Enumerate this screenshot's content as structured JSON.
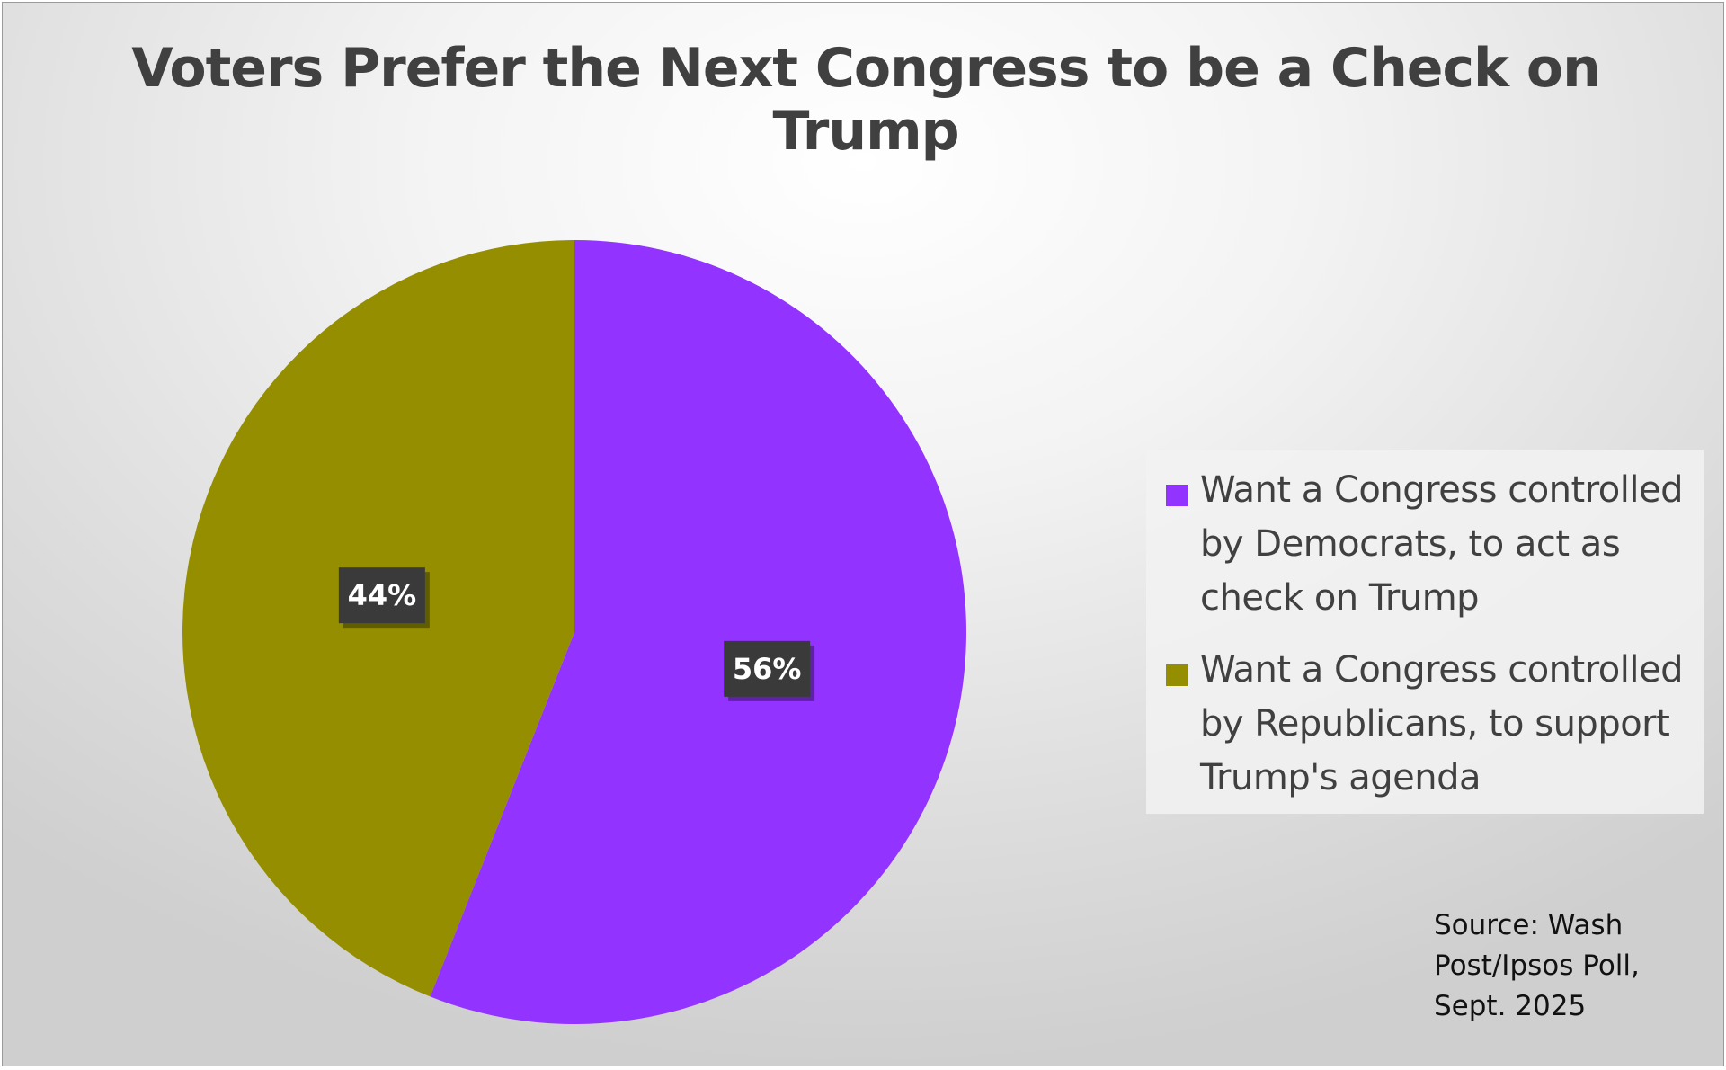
{
  "chart_data": {
    "type": "pie",
    "title": "Voters Prefer the Next Congress to be a Check on Trump",
    "slices": [
      {
        "label": "Want a Congress controlled by Democrats, to act as check on Trump",
        "value": 56,
        "display": "56%",
        "color": "#9333FF"
      },
      {
        "label": "Want a Congress controlled by Republicans, to support Trump's agenda",
        "value": 44,
        "display": "44%",
        "color": "#948E00"
      }
    ],
    "legend_position": "right",
    "label_box_color": "#3a3a3a",
    "source": "Source: Wash\nPost/Ipsos Poll,\nSept. 2025"
  }
}
